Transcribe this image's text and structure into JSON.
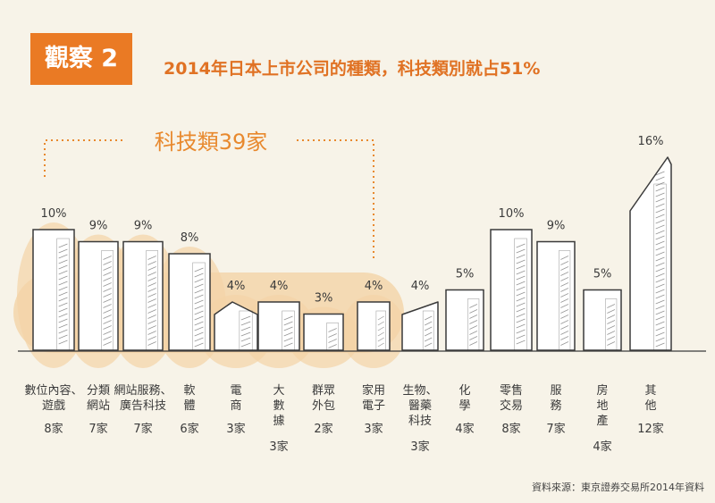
{
  "header": {
    "badge": "觀察 2",
    "title": "2014年日本上市公司的種類，科技類別就占51%"
  },
  "source": "資料來源：東京證券交易所2014年資料",
  "colors": {
    "accent": "#ea7a24",
    "highlight": "#f3d3a6",
    "bracket": "#e8892e",
    "ink": "#3a3a3a"
  },
  "chart_data": {
    "type": "bar",
    "unit": "%",
    "categories": [
      "數位內容、遊戲",
      "分類網站",
      "網站服務、廣告科技",
      "軟體",
      "電商",
      "大數據",
      "群眾外包",
      "家用電子",
      "生物、醫藥科技",
      "化學",
      "零售交易",
      "服務",
      "房地產",
      "其他"
    ],
    "category_lines": [
      [
        "數位內容、",
        "遊戲"
      ],
      [
        "分類",
        "網站"
      ],
      [
        "網站服務、",
        "廣告科技"
      ],
      [
        "軟",
        "體"
      ],
      [
        "電",
        "商"
      ],
      [
        "大",
        "數",
        "據"
      ],
      [
        "群眾",
        "外包"
      ],
      [
        "家用",
        "電子"
      ],
      [
        "生物、",
        "醫藥",
        "科技"
      ],
      [
        "化",
        "學"
      ],
      [
        "零售",
        "交易"
      ],
      [
        "服",
        "務"
      ],
      [
        "房",
        "地",
        "產"
      ],
      [
        "其",
        "他"
      ]
    ],
    "values": [
      10,
      9,
      9,
      8,
      4,
      4,
      3,
      4,
      4,
      5,
      10,
      9,
      5,
      16
    ],
    "value_labels": [
      "10%",
      "9%",
      "9%",
      "8%",
      "4%",
      "4%",
      "3%",
      "4%",
      "4%",
      "5%",
      "10%",
      "9%",
      "5%",
      "16%"
    ],
    "counts": [
      "8家",
      "7家",
      "7家",
      "6家",
      "3家",
      "3家",
      "2家",
      "3家",
      "3家",
      "4家",
      "8家",
      "7家",
      "4家",
      "12家"
    ],
    "highlighted_group": {
      "label": "科技類39家",
      "members": [
        "數位內容、遊戲",
        "分類網站",
        "網站服務、廣告科技",
        "軟體",
        "電商",
        "大數據",
        "群眾外包",
        "家用電子"
      ]
    }
  }
}
